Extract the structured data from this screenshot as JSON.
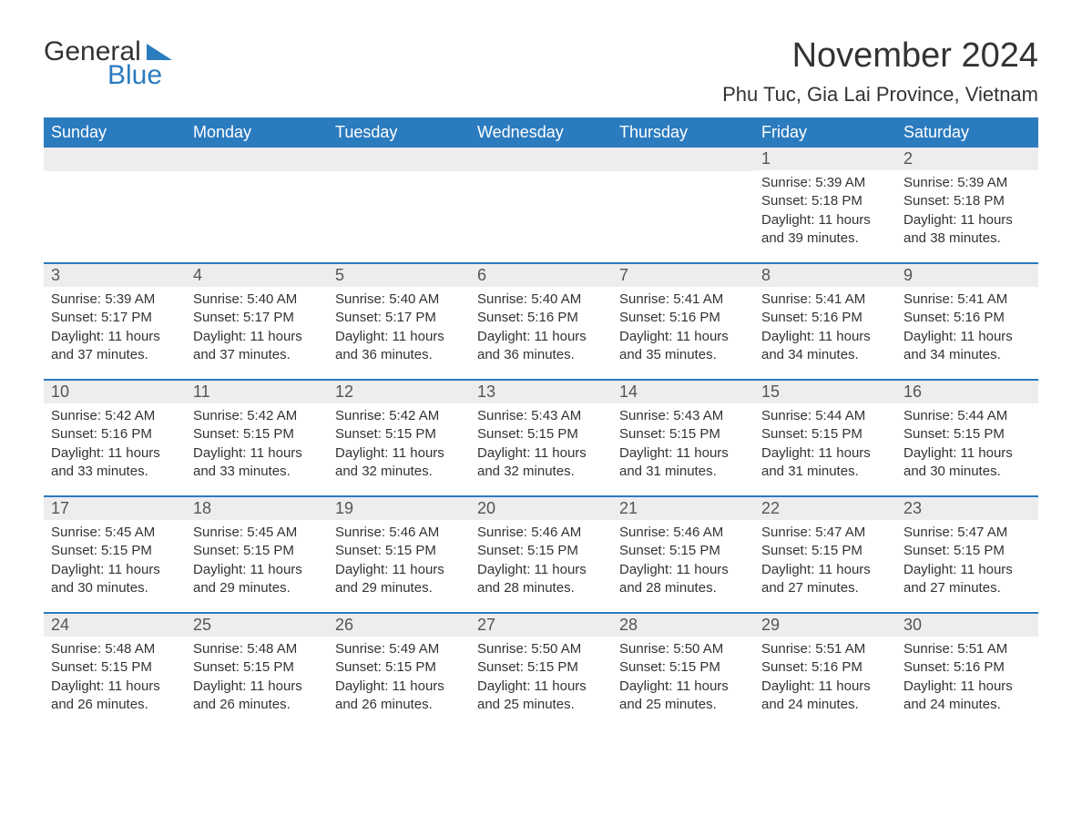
{
  "logo": {
    "textGeneral": "General",
    "textBlue": "Blue",
    "brandColor": "#2b7bbf"
  },
  "header": {
    "monthTitle": "November 2024",
    "location": "Phu Tuc, Gia Lai Province, Vietnam"
  },
  "colors": {
    "headerBar": "#2b7bbf",
    "dayBar": "#ededed",
    "sep": "#2b7bbf",
    "text": "#333333",
    "bg": "#ffffff"
  },
  "weekdays": [
    "Sunday",
    "Monday",
    "Tuesday",
    "Wednesday",
    "Thursday",
    "Friday",
    "Saturday"
  ],
  "weeks": [
    [
      {
        "empty": true
      },
      {
        "empty": true
      },
      {
        "empty": true
      },
      {
        "empty": true
      },
      {
        "empty": true
      },
      {
        "num": "1",
        "sunrise": "Sunrise: 5:39 AM",
        "sunset": "Sunset: 5:18 PM",
        "daylight": "Daylight: 11 hours and 39 minutes."
      },
      {
        "num": "2",
        "sunrise": "Sunrise: 5:39 AM",
        "sunset": "Sunset: 5:18 PM",
        "daylight": "Daylight: 11 hours and 38 minutes."
      }
    ],
    [
      {
        "num": "3",
        "sunrise": "Sunrise: 5:39 AM",
        "sunset": "Sunset: 5:17 PM",
        "daylight": "Daylight: 11 hours and 37 minutes."
      },
      {
        "num": "4",
        "sunrise": "Sunrise: 5:40 AM",
        "sunset": "Sunset: 5:17 PM",
        "daylight": "Daylight: 11 hours and 37 minutes."
      },
      {
        "num": "5",
        "sunrise": "Sunrise: 5:40 AM",
        "sunset": "Sunset: 5:17 PM",
        "daylight": "Daylight: 11 hours and 36 minutes."
      },
      {
        "num": "6",
        "sunrise": "Sunrise: 5:40 AM",
        "sunset": "Sunset: 5:16 PM",
        "daylight": "Daylight: 11 hours and 36 minutes."
      },
      {
        "num": "7",
        "sunrise": "Sunrise: 5:41 AM",
        "sunset": "Sunset: 5:16 PM",
        "daylight": "Daylight: 11 hours and 35 minutes."
      },
      {
        "num": "8",
        "sunrise": "Sunrise: 5:41 AM",
        "sunset": "Sunset: 5:16 PM",
        "daylight": "Daylight: 11 hours and 34 minutes."
      },
      {
        "num": "9",
        "sunrise": "Sunrise: 5:41 AM",
        "sunset": "Sunset: 5:16 PM",
        "daylight": "Daylight: 11 hours and 34 minutes."
      }
    ],
    [
      {
        "num": "10",
        "sunrise": "Sunrise: 5:42 AM",
        "sunset": "Sunset: 5:16 PM",
        "daylight": "Daylight: 11 hours and 33 minutes."
      },
      {
        "num": "11",
        "sunrise": "Sunrise: 5:42 AM",
        "sunset": "Sunset: 5:15 PM",
        "daylight": "Daylight: 11 hours and 33 minutes."
      },
      {
        "num": "12",
        "sunrise": "Sunrise: 5:42 AM",
        "sunset": "Sunset: 5:15 PM",
        "daylight": "Daylight: 11 hours and 32 minutes."
      },
      {
        "num": "13",
        "sunrise": "Sunrise: 5:43 AM",
        "sunset": "Sunset: 5:15 PM",
        "daylight": "Daylight: 11 hours and 32 minutes."
      },
      {
        "num": "14",
        "sunrise": "Sunrise: 5:43 AM",
        "sunset": "Sunset: 5:15 PM",
        "daylight": "Daylight: 11 hours and 31 minutes."
      },
      {
        "num": "15",
        "sunrise": "Sunrise: 5:44 AM",
        "sunset": "Sunset: 5:15 PM",
        "daylight": "Daylight: 11 hours and 31 minutes."
      },
      {
        "num": "16",
        "sunrise": "Sunrise: 5:44 AM",
        "sunset": "Sunset: 5:15 PM",
        "daylight": "Daylight: 11 hours and 30 minutes."
      }
    ],
    [
      {
        "num": "17",
        "sunrise": "Sunrise: 5:45 AM",
        "sunset": "Sunset: 5:15 PM",
        "daylight": "Daylight: 11 hours and 30 minutes."
      },
      {
        "num": "18",
        "sunrise": "Sunrise: 5:45 AM",
        "sunset": "Sunset: 5:15 PM",
        "daylight": "Daylight: 11 hours and 29 minutes."
      },
      {
        "num": "19",
        "sunrise": "Sunrise: 5:46 AM",
        "sunset": "Sunset: 5:15 PM",
        "daylight": "Daylight: 11 hours and 29 minutes."
      },
      {
        "num": "20",
        "sunrise": "Sunrise: 5:46 AM",
        "sunset": "Sunset: 5:15 PM",
        "daylight": "Daylight: 11 hours and 28 minutes."
      },
      {
        "num": "21",
        "sunrise": "Sunrise: 5:46 AM",
        "sunset": "Sunset: 5:15 PM",
        "daylight": "Daylight: 11 hours and 28 minutes."
      },
      {
        "num": "22",
        "sunrise": "Sunrise: 5:47 AM",
        "sunset": "Sunset: 5:15 PM",
        "daylight": "Daylight: 11 hours and 27 minutes."
      },
      {
        "num": "23",
        "sunrise": "Sunrise: 5:47 AM",
        "sunset": "Sunset: 5:15 PM",
        "daylight": "Daylight: 11 hours and 27 minutes."
      }
    ],
    [
      {
        "num": "24",
        "sunrise": "Sunrise: 5:48 AM",
        "sunset": "Sunset: 5:15 PM",
        "daylight": "Daylight: 11 hours and 26 minutes."
      },
      {
        "num": "25",
        "sunrise": "Sunrise: 5:48 AM",
        "sunset": "Sunset: 5:15 PM",
        "daylight": "Daylight: 11 hours and 26 minutes."
      },
      {
        "num": "26",
        "sunrise": "Sunrise: 5:49 AM",
        "sunset": "Sunset: 5:15 PM",
        "daylight": "Daylight: 11 hours and 26 minutes."
      },
      {
        "num": "27",
        "sunrise": "Sunrise: 5:50 AM",
        "sunset": "Sunset: 5:15 PM",
        "daylight": "Daylight: 11 hours and 25 minutes."
      },
      {
        "num": "28",
        "sunrise": "Sunrise: 5:50 AM",
        "sunset": "Sunset: 5:15 PM",
        "daylight": "Daylight: 11 hours and 25 minutes."
      },
      {
        "num": "29",
        "sunrise": "Sunrise: 5:51 AM",
        "sunset": "Sunset: 5:16 PM",
        "daylight": "Daylight: 11 hours and 24 minutes."
      },
      {
        "num": "30",
        "sunrise": "Sunrise: 5:51 AM",
        "sunset": "Sunset: 5:16 PM",
        "daylight": "Daylight: 11 hours and 24 minutes."
      }
    ]
  ]
}
